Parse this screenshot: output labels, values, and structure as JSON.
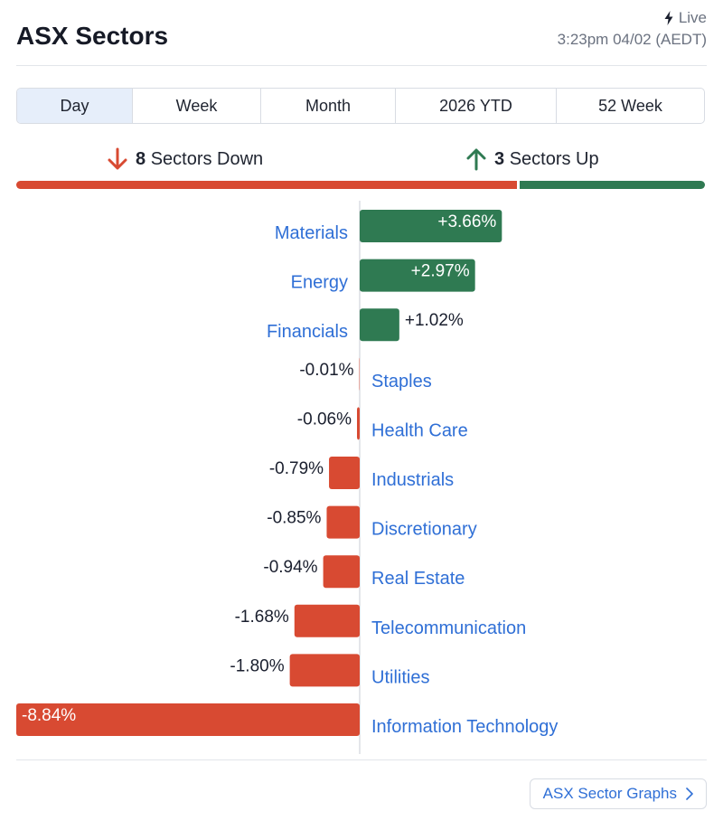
{
  "header": {
    "title": "ASX Sectors",
    "live_label": "Live",
    "timestamp": "3:23pm 04/02 (AEDT)"
  },
  "tabs": [
    {
      "label": "Day",
      "active": true
    },
    {
      "label": "Week",
      "active": false
    },
    {
      "label": "Month",
      "active": false
    },
    {
      "label": "2026 YTD",
      "active": false
    },
    {
      "label": "52 Week",
      "active": false
    }
  ],
  "summary": {
    "down_count": "8",
    "down_label": "Sectors Down",
    "up_count": "3",
    "up_label": "Sectors Up",
    "down_fraction": 0.727
  },
  "colors": {
    "positive": "#2f7a52",
    "negative": "#d84a32",
    "link": "#2f6fd6"
  },
  "chart_data": {
    "type": "bar",
    "orientation": "horizontal",
    "categories": [
      "Materials",
      "Energy",
      "Financials",
      "Staples",
      "Health Care",
      "Industrials",
      "Discretionary",
      "Real Estate",
      "Telecommunication",
      "Utilities",
      "Information Technology"
    ],
    "values": [
      3.66,
      2.97,
      1.02,
      -0.01,
      -0.06,
      -0.79,
      -0.85,
      -0.94,
      -1.68,
      -1.8,
      -8.84
    ],
    "value_labels": [
      "+3.66%",
      "+2.97%",
      "+1.02%",
      "-0.01%",
      "-0.06%",
      "-0.79%",
      "-0.85%",
      "-0.94%",
      "-1.68%",
      "-1.80%",
      "-8.84%"
    ],
    "xlim": [
      -8.84,
      8.84
    ],
    "grid": false
  },
  "footer": {
    "graphs_button": "ASX Sector Graphs"
  }
}
